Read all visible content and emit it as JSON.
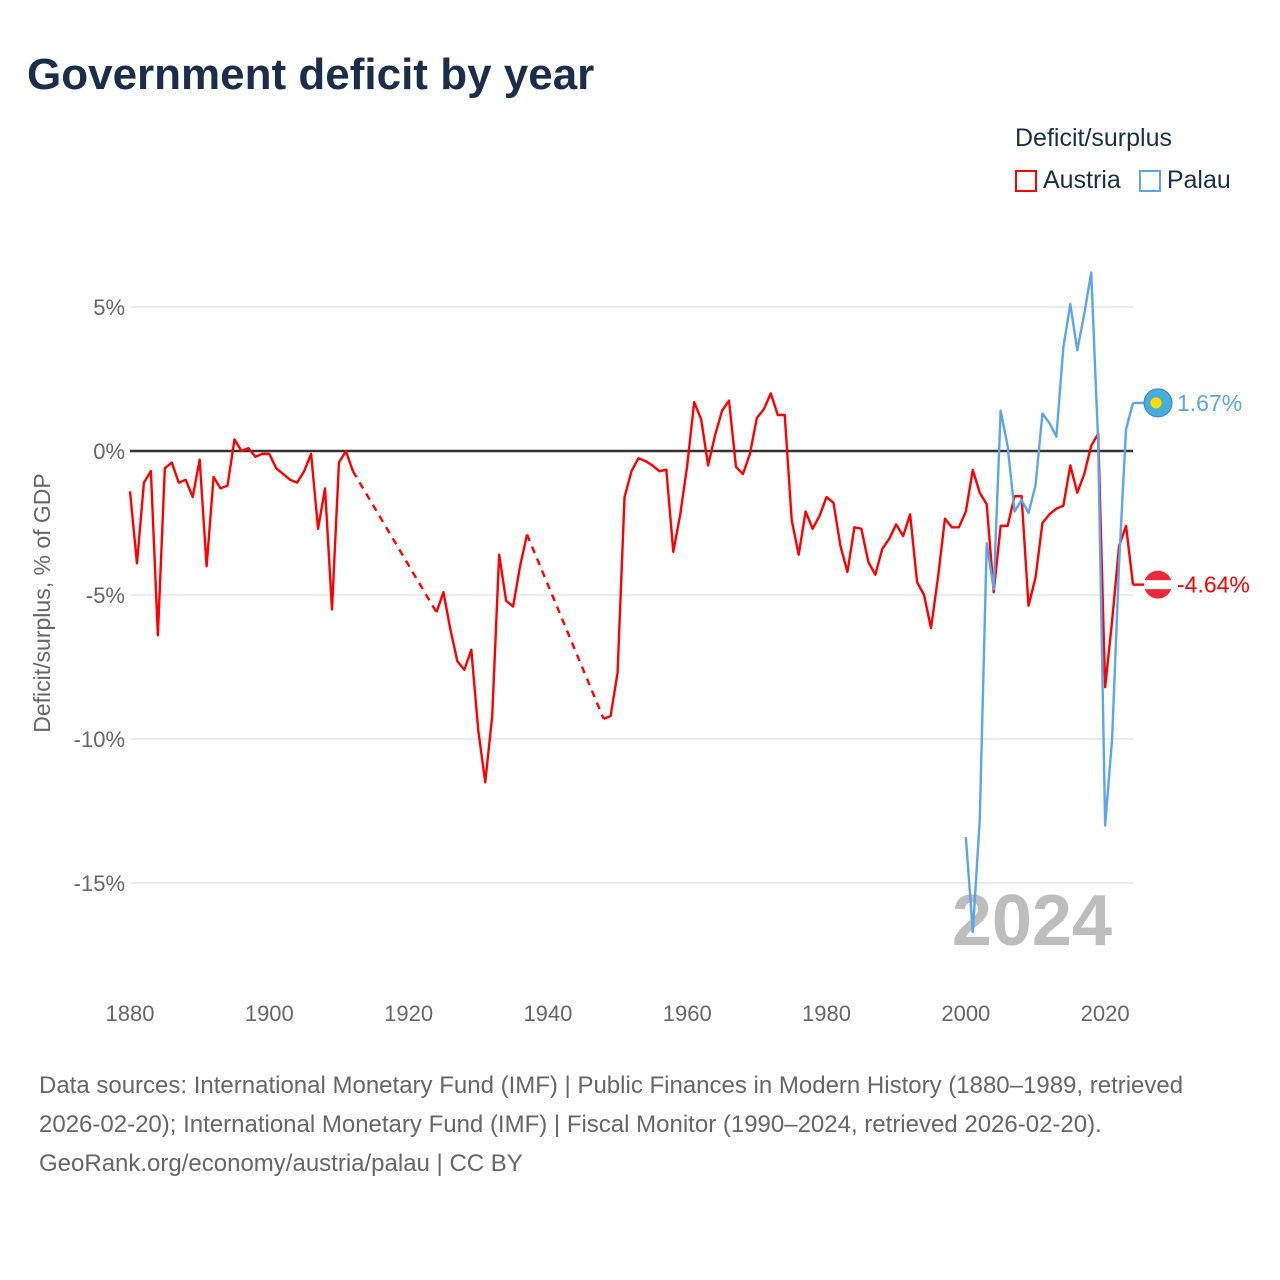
{
  "title": "Government deficit by year",
  "legend": {
    "title": "Deficit/surplus",
    "items": [
      {
        "label": "Austria",
        "color": "#ff0000"
      },
      {
        "label": "Palau",
        "color": "#5aa5ec"
      }
    ]
  },
  "chart_data": {
    "type": "line",
    "title": "Government deficit by year",
    "xlabel": "",
    "ylabel": "Deficit/surplus, % of GDP",
    "xlim": [
      1880,
      2024
    ],
    "ylim": [
      -18,
      7
    ],
    "x_ticks": [
      1880,
      1900,
      1920,
      1940,
      1960,
      1980,
      2000,
      2020
    ],
    "x_tick_labels": [
      "1880",
      "1900",
      "1920",
      "1940",
      "1960",
      "1980",
      "2000",
      "2020"
    ],
    "y_ticks": [
      5,
      0,
      -5,
      -10,
      -15
    ],
    "y_tick_labels": [
      "5%",
      "0%",
      "-5%",
      "-10%",
      "-15%"
    ],
    "grid": true,
    "legend_position": "top-right",
    "year_watermark": "2024",
    "series": [
      {
        "name": "Austria",
        "color": "#ff0000",
        "end_label": "-4.64%",
        "points": [
          [
            1880,
            -1.4
          ],
          [
            1881,
            -3.9
          ],
          [
            1882,
            -1.1
          ],
          [
            1883,
            -0.7
          ],
          [
            1884,
            -6.4
          ],
          [
            1885,
            -0.6
          ],
          [
            1886,
            -0.4
          ],
          [
            1887,
            -1.1
          ],
          [
            1888,
            -1.0
          ],
          [
            1889,
            -1.6
          ],
          [
            1890,
            -0.3
          ],
          [
            1891,
            -4.0
          ],
          [
            1892,
            -0.9
          ],
          [
            1893,
            -1.3
          ],
          [
            1894,
            -1.2
          ],
          [
            1895,
            0.4
          ],
          [
            1896,
            0.0
          ],
          [
            1897,
            0.1
          ],
          [
            1898,
            -0.2
          ],
          [
            1899,
            -0.1
          ],
          [
            1900,
            -0.1
          ],
          [
            1901,
            -0.6
          ],
          [
            1902,
            -0.8
          ],
          [
            1903,
            -1.0
          ],
          [
            1904,
            -1.1
          ],
          [
            1905,
            -0.7
          ],
          [
            1906,
            -0.1
          ],
          [
            1907,
            -2.7
          ],
          [
            1908,
            -1.3
          ],
          [
            1909,
            -5.5
          ],
          [
            1910,
            -0.4
          ],
          [
            1911,
            0.0
          ],
          [
            1912,
            -0.7
          ],
          [
            1924,
            -5.6
          ],
          [
            1925,
            -4.9
          ],
          [
            1926,
            -6.2
          ],
          [
            1927,
            -7.3
          ],
          [
            1928,
            -7.6
          ],
          [
            1929,
            -6.9
          ],
          [
            1930,
            -9.7
          ],
          [
            1931,
            -11.5
          ],
          [
            1932,
            -9.2
          ],
          [
            1933,
            -3.6
          ],
          [
            1934,
            -5.2
          ],
          [
            1935,
            -5.4
          ],
          [
            1936,
            -4.0
          ],
          [
            1937,
            -2.9
          ],
          [
            1948,
            -9.3
          ],
          [
            1949,
            -9.2
          ],
          [
            1950,
            -7.7
          ],
          [
            1951,
            -1.6
          ],
          [
            1952,
            -0.7
          ],
          [
            1953,
            -0.25
          ],
          [
            1954,
            -0.35
          ],
          [
            1955,
            -0.5
          ],
          [
            1956,
            -0.7
          ],
          [
            1957,
            -0.65
          ],
          [
            1958,
            -3.5
          ],
          [
            1959,
            -2.2
          ],
          [
            1960,
            -0.5
          ],
          [
            1961,
            1.7
          ],
          [
            1962,
            1.1
          ],
          [
            1963,
            -0.5
          ],
          [
            1964,
            0.55
          ],
          [
            1965,
            1.4
          ],
          [
            1966,
            1.75
          ],
          [
            1967,
            -0.55
          ],
          [
            1968,
            -0.8
          ],
          [
            1969,
            -0.1
          ],
          [
            1970,
            1.15
          ],
          [
            1971,
            1.45
          ],
          [
            1972,
            2.0
          ],
          [
            1973,
            1.25
          ],
          [
            1974,
            1.25
          ],
          [
            1975,
            -2.4
          ],
          [
            1976,
            -3.6
          ],
          [
            1977,
            -2.1
          ],
          [
            1978,
            -2.7
          ],
          [
            1979,
            -2.25
          ],
          [
            1980,
            -1.6
          ],
          [
            1981,
            -1.8
          ],
          [
            1982,
            -3.3
          ],
          [
            1983,
            -4.2
          ],
          [
            1984,
            -2.65
          ],
          [
            1985,
            -2.7
          ],
          [
            1986,
            -3.85
          ],
          [
            1987,
            -4.3
          ],
          [
            1988,
            -3.4
          ],
          [
            1989,
            -3.05
          ],
          [
            1990,
            -2.55
          ],
          [
            1991,
            -2.95
          ],
          [
            1992,
            -2.2
          ],
          [
            1993,
            -4.55
          ],
          [
            1994,
            -5.0
          ],
          [
            1995,
            -6.15
          ],
          [
            1996,
            -4.4
          ],
          [
            1997,
            -2.35
          ],
          [
            1998,
            -2.65
          ],
          [
            1999,
            -2.65
          ],
          [
            2000,
            -2.1
          ],
          [
            2001,
            -0.66
          ],
          [
            2002,
            -1.45
          ],
          [
            2003,
            -1.85
          ],
          [
            2004,
            -4.9
          ],
          [
            2005,
            -2.6
          ],
          [
            2006,
            -2.6
          ],
          [
            2007,
            -1.57
          ],
          [
            2008,
            -1.57
          ],
          [
            2009,
            -5.37
          ],
          [
            2010,
            -4.4
          ],
          [
            2011,
            -2.5
          ],
          [
            2012,
            -2.2
          ],
          [
            2013,
            -2.0
          ],
          [
            2014,
            -1.9
          ],
          [
            2015,
            -0.5
          ],
          [
            2016,
            -1.45
          ],
          [
            2017,
            -0.8
          ],
          [
            2018,
            0.18
          ],
          [
            2019,
            0.6
          ],
          [
            2020,
            -8.2
          ],
          [
            2021,
            -5.9
          ],
          [
            2022,
            -3.3
          ],
          [
            2023,
            -2.6
          ],
          [
            2024,
            -4.64
          ]
        ]
      },
      {
        "name": "Palau",
        "color": "#5aa5ec",
        "end_label": "1.67%",
        "points": [
          [
            2000,
            -13.4
          ],
          [
            2001,
            -16.7
          ],
          [
            2002,
            -12.8
          ],
          [
            2003,
            -3.2
          ],
          [
            2004,
            -4.8
          ],
          [
            2005,
            1.4
          ],
          [
            2006,
            0.17
          ],
          [
            2007,
            -2.1
          ],
          [
            2008,
            -1.7
          ],
          [
            2009,
            -2.15
          ],
          [
            2010,
            -1.2
          ],
          [
            2011,
            1.3
          ],
          [
            2012,
            0.97
          ],
          [
            2013,
            0.5
          ],
          [
            2014,
            3.6
          ],
          [
            2015,
            5.1
          ],
          [
            2016,
            3.5
          ],
          [
            2017,
            4.75
          ],
          [
            2018,
            6.2
          ],
          [
            2019,
            0.3
          ],
          [
            2020,
            -13.0
          ],
          [
            2021,
            -10.0
          ],
          [
            2022,
            -3.9
          ],
          [
            2023,
            0.75
          ],
          [
            2024,
            1.67
          ]
        ]
      }
    ]
  },
  "footer": {
    "sources": "Data sources: International Monetary Fund (IMF) | Public Finances in Modern History (1880–1989, retrieved 2026-02-20); International Monetary Fund (IMF) | Fiscal Monitor (1990–2024, retrieved 2026-02-20).",
    "credit": "GeoRank.org/economy/austria/palau | CC BY"
  }
}
